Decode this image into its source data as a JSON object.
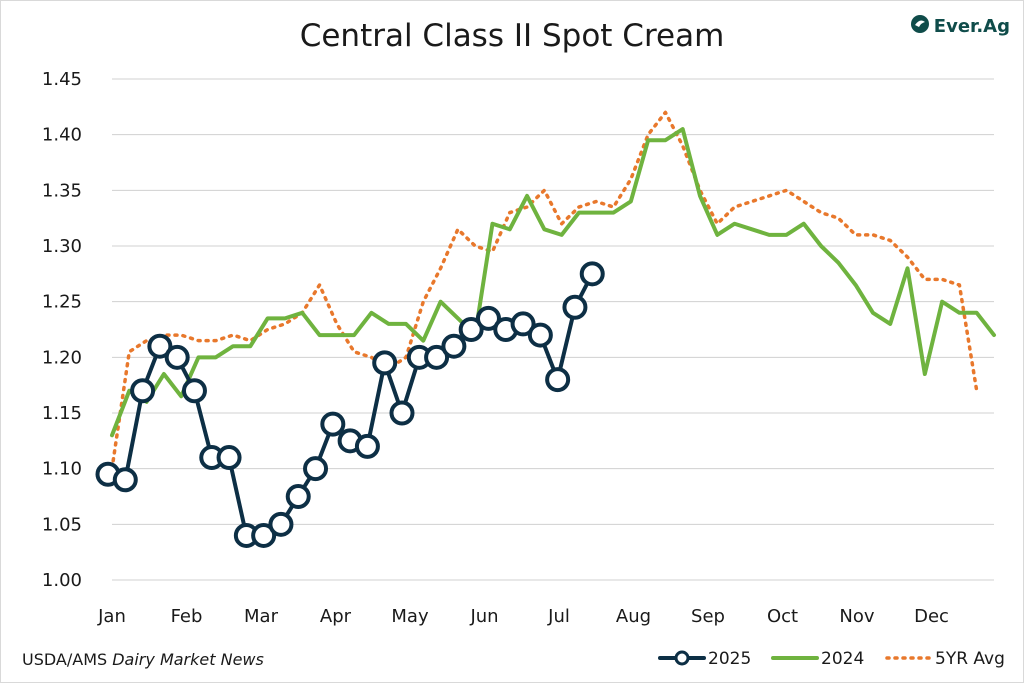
{
  "title": "Central Class II Spot Cream",
  "logo": {
    "text": "Ever.Ag",
    "icon": "ever-ag-logo-icon",
    "color": "#0f4c4a"
  },
  "source": {
    "prefix": "USDA/AMS ",
    "italic": "Dairy Market News"
  },
  "chart_data": {
    "type": "line",
    "title": "Central Class II Spot Cream",
    "xlabel": "",
    "ylabel": "",
    "ylim": [
      1.0,
      1.45
    ],
    "yticks": [
      "1.00",
      "1.05",
      "1.10",
      "1.15",
      "1.20",
      "1.25",
      "1.30",
      "1.35",
      "1.40",
      "1.45"
    ],
    "xticks": [
      "Jan",
      "Feb",
      "Mar",
      "Apr",
      "May",
      "Jun",
      "Jul",
      "Aug",
      "Sep",
      "Oct",
      "Nov",
      "Dec"
    ],
    "grid": true,
    "legend_position": "bottom-right",
    "series": [
      {
        "name": "2025",
        "color": "#0d2f45",
        "style": "solid-markers",
        "values": [
          1.095,
          1.09,
          1.17,
          1.21,
          1.2,
          1.17,
          1.11,
          1.11,
          1.04,
          1.04,
          1.05,
          1.075,
          1.1,
          1.14,
          1.125,
          1.12,
          1.195,
          1.15,
          1.2,
          1.2,
          1.21,
          1.225,
          1.235,
          1.225,
          1.23,
          1.22,
          1.18,
          1.245,
          1.275
        ]
      },
      {
        "name": "2024",
        "color": "#6fb33f",
        "style": "solid",
        "values": [
          1.13,
          1.17,
          1.16,
          1.185,
          1.165,
          1.2,
          1.2,
          1.21,
          1.21,
          1.235,
          1.235,
          1.24,
          1.22,
          1.22,
          1.22,
          1.24,
          1.23,
          1.23,
          1.215,
          1.25,
          1.235,
          1.22,
          1.32,
          1.315,
          1.345,
          1.315,
          1.31,
          1.33,
          1.33,
          1.33,
          1.34,
          1.395,
          1.395,
          1.405,
          1.345,
          1.31,
          1.32,
          1.315,
          1.31,
          1.31,
          1.32,
          1.3,
          1.285,
          1.265,
          1.24,
          1.23,
          1.28,
          1.185,
          1.25,
          1.24,
          1.24,
          1.22
        ]
      },
      {
        "name": "5YR Avg",
        "color": "#e8782c",
        "style": "dotted",
        "values": [
          1.1,
          1.205,
          1.215,
          1.22,
          1.22,
          1.215,
          1.215,
          1.22,
          1.215,
          1.225,
          1.23,
          1.24,
          1.265,
          1.23,
          1.205,
          1.2,
          1.19,
          1.2,
          1.25,
          1.28,
          1.315,
          1.3,
          1.295,
          1.33,
          1.335,
          1.35,
          1.32,
          1.335,
          1.34,
          1.335,
          1.36,
          1.4,
          1.42,
          1.39,
          1.35,
          1.32,
          1.335,
          1.34,
          1.345,
          1.35,
          1.34,
          1.33,
          1.325,
          1.31,
          1.31,
          1.305,
          1.29,
          1.27,
          1.27,
          1.265,
          1.17
        ]
      }
    ]
  }
}
